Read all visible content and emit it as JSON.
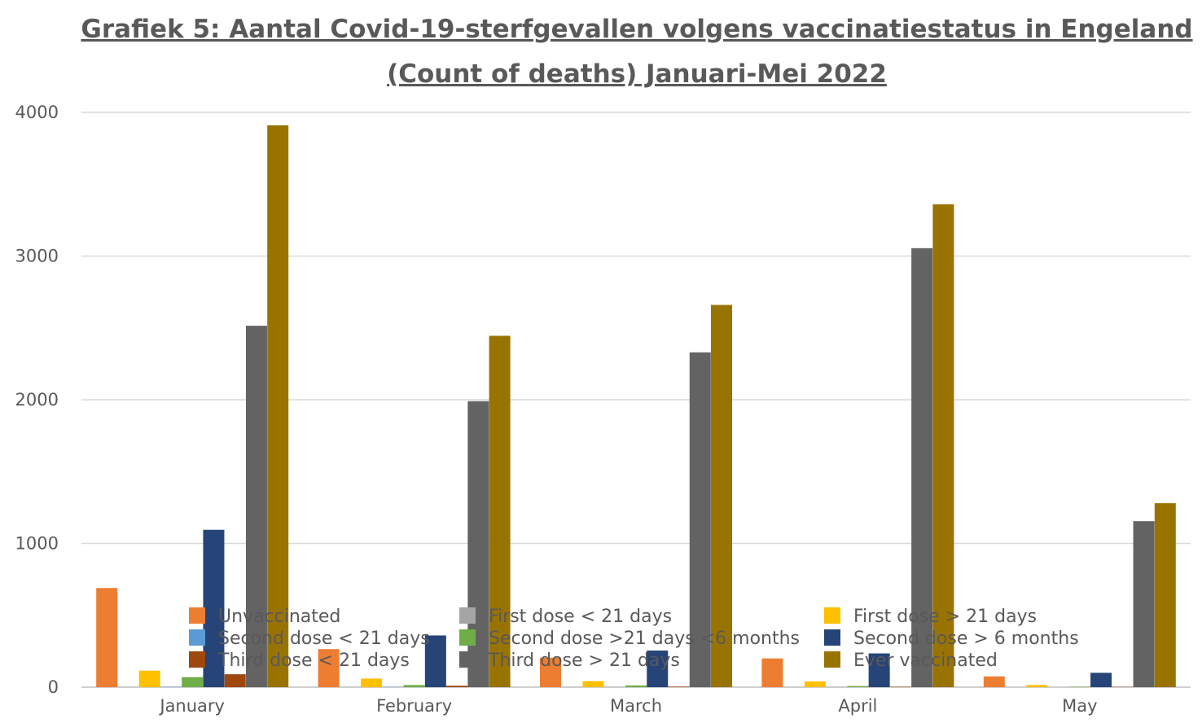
{
  "chart_data": {
    "type": "bar",
    "title_lines": [
      "Grafiek 5: Aantal Covid-19-sterfgevallen volgens  vaccinatiestatus in Engeland",
      "(Count of deaths) Januari-Mei 2022"
    ],
    "xlabel": "",
    "ylabel": "",
    "ylim": [
      0,
      4000
    ],
    "y_ticks": [
      0,
      1000,
      2000,
      3000,
      4000
    ],
    "grid": true,
    "legend_position": "bottom-overlay",
    "categories": [
      "January",
      "February",
      "March",
      "April",
      "May"
    ],
    "series": [
      {
        "name": "Unvaccinated",
        "color": "#ED7D31",
        "values": [
          690,
          265,
          205,
          200,
          75
        ]
      },
      {
        "name": "First dose < 21 days",
        "color": "#A5A5A5",
        "values": [
          2,
          1,
          1,
          1,
          0
        ]
      },
      {
        "name": "First dose > 21 days",
        "color": "#FFC000",
        "values": [
          115,
          60,
          42,
          40,
          15
        ]
      },
      {
        "name": "Second dose < 21 days",
        "color": "#5B9BD5",
        "values": [
          3,
          2,
          1,
          1,
          0
        ]
      },
      {
        "name": "Second dose >21 days <6 months",
        "color": "#70AD47",
        "values": [
          70,
          15,
          12,
          8,
          3
        ]
      },
      {
        "name": "Second dose > 6 months",
        "color": "#264478",
        "values": [
          1095,
          360,
          255,
          235,
          100
        ]
      },
      {
        "name": "Third dose < 21 days",
        "color": "#9E480E",
        "values": [
          90,
          10,
          4,
          3,
          2
        ]
      },
      {
        "name": "Third dose >  21 days",
        "color": "#636363",
        "values": [
          2515,
          1990,
          2330,
          3055,
          1155
        ]
      },
      {
        "name": "Ever  vaccinated",
        "color": "#997300",
        "values": [
          3910,
          2445,
          2660,
          3360,
          1280
        ]
      }
    ]
  }
}
